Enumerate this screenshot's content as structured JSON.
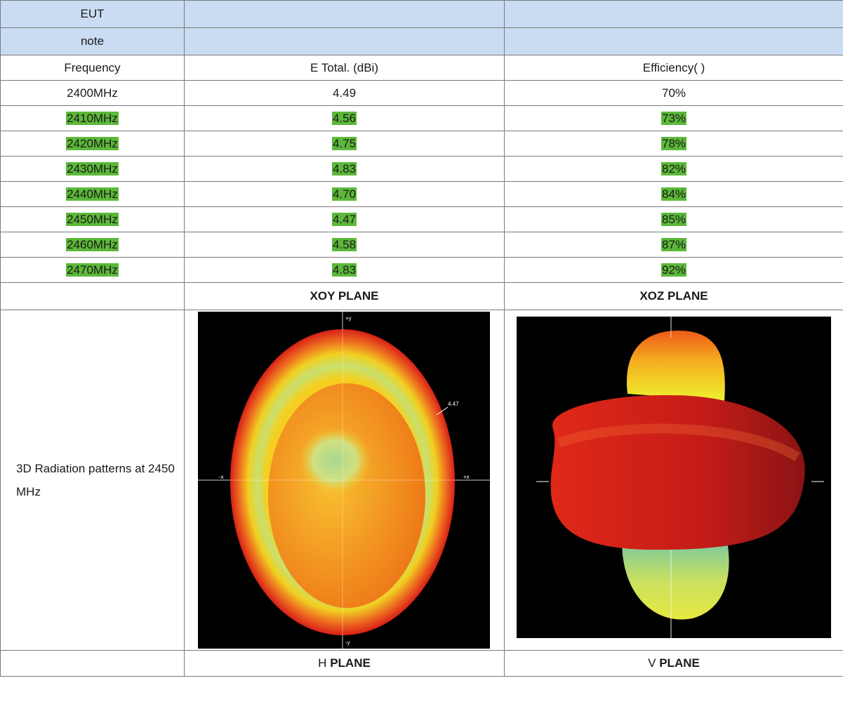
{
  "eut": {
    "label": "EUT",
    "col2": "",
    "col3": ""
  },
  "note": {
    "label": "note",
    "col2": "",
    "col3": ""
  },
  "columns": {
    "frequency": "Frequency",
    "gain": "E Total. (dBi)",
    "efficiency": "Efficiency( )"
  },
  "rows": [
    {
      "freq": "2400MHz",
      "gain": "4.49",
      "eff": "70%",
      "highlight": false
    },
    {
      "freq": "2410MHz",
      "gain": "4.56",
      "eff": "73%",
      "highlight": true
    },
    {
      "freq": "2420MHz",
      "gain": "4.75",
      "eff": "78%",
      "highlight": true
    },
    {
      "freq": "2430MHz",
      "gain": "4.83",
      "eff": "82%",
      "highlight": true
    },
    {
      "freq": "2440MHz",
      "gain": "4.70",
      "eff": "84%",
      "highlight": true
    },
    {
      "freq": "2450MHz",
      "gain": "4.47",
      "eff": "85%",
      "highlight": true
    },
    {
      "freq": "2460MHz",
      "gain": "4.58",
      "eff": "87%",
      "highlight": true
    },
    {
      "freq": "2470MHz",
      "gain": "4.83",
      "eff": "92%",
      "highlight": true
    }
  ],
  "planes": {
    "xoy": "XOY PLANE",
    "xoz": "XOZ PLANE"
  },
  "radiation": {
    "label": "3D Radiation patterns at 2450 MHz",
    "xoy_axes": {
      "top": "+y",
      "bottom": "-y",
      "left": "-x",
      "right": "+x",
      "peak": "4.47"
    },
    "highlight_color": "#5cb83a",
    "header_color": "#c9dcf2"
  },
  "footer": {
    "h_prefix": "H",
    "h_suffix": "PLANE",
    "v_prefix": "V",
    "v_suffix": "PLANE"
  }
}
